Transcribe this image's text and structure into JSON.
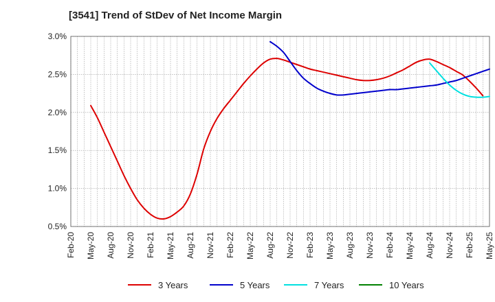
{
  "chart_data": {
    "type": "line",
    "title": "[3541]  Trend of StDev of Net Income Margin",
    "xlabel": "",
    "ylabel": "",
    "x_ticks": [
      "Feb-20",
      "May-20",
      "Aug-20",
      "Nov-20",
      "Feb-21",
      "May-21",
      "Aug-21",
      "Nov-21",
      "Feb-22",
      "May-22",
      "Aug-22",
      "Nov-22",
      "Feb-23",
      "May-23",
      "Aug-23",
      "Nov-23",
      "Feb-24",
      "May-24",
      "Aug-24",
      "Nov-24",
      "Feb-25",
      "May-25"
    ],
    "y_ticks": [
      "0.5%",
      "1.0%",
      "1.5%",
      "2.0%",
      "2.5%",
      "3.0%"
    ],
    "y_tick_values": [
      0.5,
      1.0,
      1.5,
      2.0,
      2.5,
      3.0
    ],
    "ylim": [
      0.5,
      3.0
    ],
    "y_unit": "%",
    "grid": true,
    "legend_position": "bottom",
    "series": [
      {
        "name": "3 Years",
        "color": "#dd0000",
        "points": [
          [
            "May-20",
            2.09
          ],
          [
            "Jun-20",
            1.93
          ],
          [
            "Jul-20",
            1.74
          ],
          [
            "Aug-20",
            1.55
          ],
          [
            "Sep-20",
            1.36
          ],
          [
            "Oct-20",
            1.17
          ],
          [
            "Nov-20",
            1.0
          ],
          [
            "Dec-20",
            0.85
          ],
          [
            "Jan-21",
            0.74
          ],
          [
            "Feb-21",
            0.66
          ],
          [
            "Mar-21",
            0.61
          ],
          [
            "Apr-21",
            0.6
          ],
          [
            "May-21",
            0.63
          ],
          [
            "Jun-21",
            0.69
          ],
          [
            "Jul-21",
            0.77
          ],
          [
            "Aug-21",
            0.93
          ],
          [
            "Sep-21",
            1.19
          ],
          [
            "Oct-21",
            1.52
          ],
          [
            "Nov-21",
            1.75
          ],
          [
            "Dec-21",
            1.92
          ],
          [
            "Jan-22",
            2.05
          ],
          [
            "Feb-22",
            2.16
          ],
          [
            "Mar-22",
            2.27
          ],
          [
            "Apr-22",
            2.38
          ],
          [
            "May-22",
            2.48
          ],
          [
            "Jun-22",
            2.57
          ],
          [
            "Jul-22",
            2.65
          ],
          [
            "Aug-22",
            2.7
          ],
          [
            "Sep-22",
            2.71
          ],
          [
            "Oct-22",
            2.69
          ],
          [
            "Nov-22",
            2.66
          ],
          [
            "Dec-22",
            2.63
          ],
          [
            "Jan-23",
            2.6
          ],
          [
            "Feb-23",
            2.57
          ],
          [
            "Mar-23",
            2.55
          ],
          [
            "Apr-23",
            2.53
          ],
          [
            "May-23",
            2.51
          ],
          [
            "Jun-23",
            2.49
          ],
          [
            "Jul-23",
            2.47
          ],
          [
            "Aug-23",
            2.45
          ],
          [
            "Sep-23",
            2.43
          ],
          [
            "Oct-23",
            2.42
          ],
          [
            "Nov-23",
            2.42
          ],
          [
            "Dec-23",
            2.43
          ],
          [
            "Jan-24",
            2.45
          ],
          [
            "Feb-24",
            2.48
          ],
          [
            "Mar-24",
            2.52
          ],
          [
            "Apr-24",
            2.56
          ],
          [
            "May-24",
            2.61
          ],
          [
            "Jun-24",
            2.66
          ],
          [
            "Jul-24",
            2.69
          ],
          [
            "Aug-24",
            2.7
          ],
          [
            "Sep-24",
            2.67
          ],
          [
            "Oct-24",
            2.63
          ],
          [
            "Nov-24",
            2.59
          ],
          [
            "Dec-24",
            2.54
          ],
          [
            "Jan-25",
            2.49
          ],
          [
            "Feb-25",
            2.41
          ],
          [
            "Mar-25",
            2.32
          ],
          [
            "Apr-25",
            2.22
          ]
        ]
      },
      {
        "name": "5 Years",
        "color": "#0000cc",
        "points": [
          [
            "Aug-22",
            2.93
          ],
          [
            "Sep-22",
            2.87
          ],
          [
            "Oct-22",
            2.79
          ],
          [
            "Nov-22",
            2.67
          ],
          [
            "Dec-22",
            2.55
          ],
          [
            "Jan-23",
            2.45
          ],
          [
            "Feb-23",
            2.38
          ],
          [
            "Mar-23",
            2.32
          ],
          [
            "Apr-23",
            2.28
          ],
          [
            "May-23",
            2.25
          ],
          [
            "Jun-23",
            2.23
          ],
          [
            "Jul-23",
            2.23
          ],
          [
            "Aug-23",
            2.24
          ],
          [
            "Sep-23",
            2.25
          ],
          [
            "Oct-23",
            2.26
          ],
          [
            "Nov-23",
            2.27
          ],
          [
            "Dec-23",
            2.28
          ],
          [
            "Jan-24",
            2.29
          ],
          [
            "Feb-24",
            2.3
          ],
          [
            "Mar-24",
            2.3
          ],
          [
            "Apr-24",
            2.31
          ],
          [
            "May-24",
            2.32
          ],
          [
            "Jun-24",
            2.33
          ],
          [
            "Jul-24",
            2.34
          ],
          [
            "Aug-24",
            2.35
          ],
          [
            "Sep-24",
            2.36
          ],
          [
            "Oct-24",
            2.38
          ],
          [
            "Nov-24",
            2.4
          ],
          [
            "Dec-24",
            2.42
          ],
          [
            "Jan-25",
            2.45
          ],
          [
            "Feb-25",
            2.48
          ],
          [
            "Mar-25",
            2.51
          ],
          [
            "Apr-25",
            2.54
          ],
          [
            "May-25",
            2.57
          ]
        ]
      },
      {
        "name": "7 Years",
        "color": "#00e0e0",
        "points": [
          [
            "Aug-24",
            2.65
          ],
          [
            "Sep-24",
            2.55
          ],
          [
            "Oct-24",
            2.45
          ],
          [
            "Nov-24",
            2.36
          ],
          [
            "Dec-24",
            2.29
          ],
          [
            "Jan-25",
            2.24
          ],
          [
            "Feb-25",
            2.21
          ],
          [
            "Mar-25",
            2.2
          ],
          [
            "Apr-25",
            2.2
          ],
          [
            "May-25",
            2.21
          ]
        ]
      },
      {
        "name": "10 Years",
        "color": "#008000",
        "points": []
      }
    ]
  }
}
